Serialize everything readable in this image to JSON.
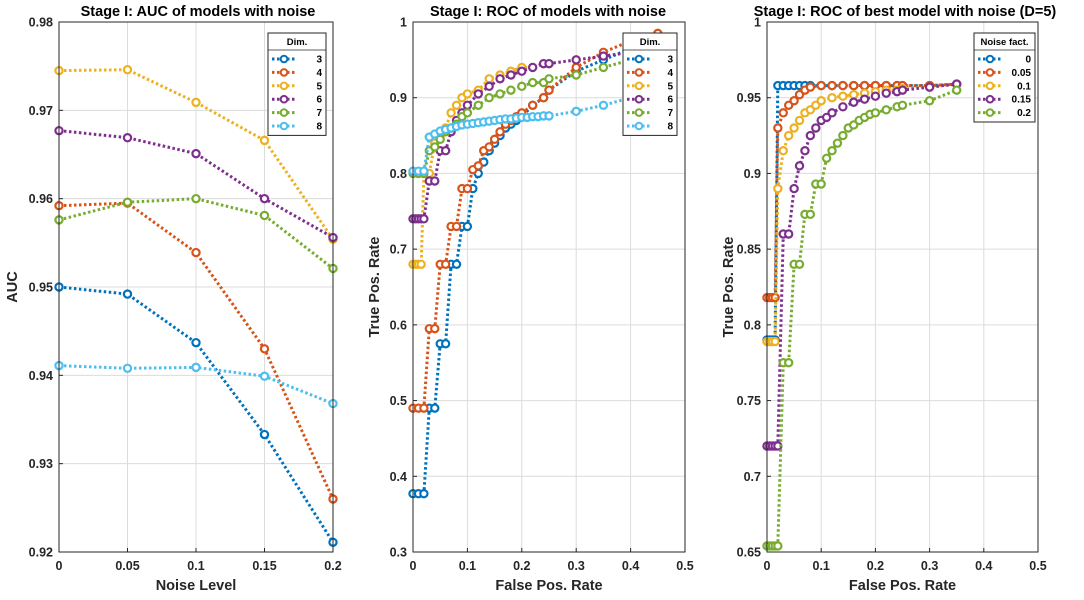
{
  "chart_data": [
    {
      "type": "line",
      "title": "Stage I: AUC of models with noise",
      "xlabel": "Noise Level",
      "ylabel": "AUC",
      "xlim": [
        0,
        0.2
      ],
      "ylim": [
        0.92,
        0.98
      ],
      "xticks": [
        "0",
        "0.05",
        "0.1",
        "0.15",
        "0.2"
      ],
      "yticks": [
        "0.92",
        "0.93",
        "0.94",
        "0.95",
        "0.96",
        "0.97",
        "0.98"
      ],
      "legend_title": "Dim.",
      "legend_position": "top-right",
      "x": [
        0,
        0.05,
        0.1,
        0.15,
        0.2
      ],
      "series": [
        {
          "name": "3",
          "color": "#0072BD",
          "values": [
            0.95,
            0.9492,
            0.9437,
            0.9333,
            0.9211
          ]
        },
        {
          "name": "4",
          "color": "#D95319",
          "values": [
            0.9592,
            0.9595,
            0.9539,
            0.943,
            0.926
          ]
        },
        {
          "name": "5",
          "color": "#EDB120",
          "values": [
            0.9745,
            0.9746,
            0.9709,
            0.9666,
            0.9554
          ]
        },
        {
          "name": "6",
          "color": "#7E2F8E",
          "values": [
            0.9677,
            0.9669,
            0.9651,
            0.96,
            0.9556
          ]
        },
        {
          "name": "7",
          "color": "#77AC30",
          "values": [
            0.9576,
            0.9596,
            0.96,
            0.9581,
            0.9521
          ]
        },
        {
          "name": "8",
          "color": "#4DBEEE",
          "values": [
            0.9411,
            0.9408,
            0.9409,
            0.9399,
            0.9368
          ]
        }
      ]
    },
    {
      "type": "line",
      "title": "Stage I: ROC of models with noise",
      "xlabel": "False Pos. Rate",
      "ylabel": "True Pos. Rate",
      "xlim": [
        0,
        0.5
      ],
      "ylim": [
        0.3,
        1
      ],
      "xticks": [
        "0",
        "0.1",
        "0.2",
        "0.3",
        "0.4",
        "0.5"
      ],
      "yticks": [
        "0.3",
        "0.4",
        "0.5",
        "0.6",
        "0.7",
        "0.8",
        "0.9",
        "1"
      ],
      "legend_title": "Dim.",
      "legend_position": "top-right",
      "series": [
        {
          "name": "3",
          "color": "#0072BD",
          "x": [
            0,
            0.01,
            0.02,
            0.03,
            0.04,
            0.05,
            0.06,
            0.07,
            0.08,
            0.09,
            0.1,
            0.11,
            0.12,
            0.13,
            0.14,
            0.15,
            0.16,
            0.17,
            0.18,
            0.19,
            0.2,
            0.22,
            0.24,
            0.25,
            0.3,
            0.35,
            0.4,
            0.45
          ],
          "y": [
            0.377,
            0.377,
            0.377,
            0.49,
            0.49,
            0.575,
            0.575,
            0.68,
            0.68,
            0.73,
            0.73,
            0.78,
            0.8,
            0.815,
            0.83,
            0.84,
            0.85,
            0.86,
            0.865,
            0.87,
            0.875,
            0.89,
            0.9,
            0.91,
            0.935,
            0.95,
            0.965,
            0.975
          ]
        },
        {
          "name": "4",
          "color": "#D95319",
          "x": [
            0,
            0.01,
            0.02,
            0.03,
            0.04,
            0.05,
            0.06,
            0.07,
            0.08,
            0.09,
            0.1,
            0.11,
            0.12,
            0.13,
            0.14,
            0.15,
            0.16,
            0.17,
            0.18,
            0.19,
            0.2,
            0.22,
            0.24,
            0.25,
            0.3,
            0.35,
            0.4,
            0.45
          ],
          "y": [
            0.49,
            0.49,
            0.49,
            0.595,
            0.595,
            0.68,
            0.68,
            0.73,
            0.73,
            0.78,
            0.78,
            0.805,
            0.81,
            0.83,
            0.835,
            0.845,
            0.855,
            0.865,
            0.87,
            0.875,
            0.88,
            0.89,
            0.9,
            0.91,
            0.94,
            0.96,
            0.975,
            0.985
          ]
        },
        {
          "name": "5",
          "color": "#EDB120",
          "x": [
            0,
            0.005,
            0.01,
            0.015,
            0.02,
            0.03,
            0.04,
            0.05,
            0.06,
            0.07,
            0.08,
            0.09,
            0.1,
            0.12,
            0.14,
            0.16,
            0.18,
            0.2,
            0.22,
            0.24,
            0.25
          ],
          "y": [
            0.68,
            0.68,
            0.68,
            0.68,
            0.8,
            0.8,
            0.84,
            0.85,
            0.86,
            0.88,
            0.89,
            0.9,
            0.905,
            0.91,
            0.925,
            0.93,
            0.935,
            0.94,
            0.94,
            0.945,
            0.945
          ]
        },
        {
          "name": "6",
          "color": "#7E2F8E",
          "x": [
            0,
            0.005,
            0.01,
            0.015,
            0.02,
            0.03,
            0.04,
            0.05,
            0.06,
            0.07,
            0.08,
            0.09,
            0.1,
            0.12,
            0.14,
            0.16,
            0.18,
            0.2,
            0.22,
            0.24,
            0.25,
            0.3,
            0.35,
            0.4,
            0.45
          ],
          "y": [
            0.74,
            0.74,
            0.74,
            0.74,
            0.74,
            0.79,
            0.79,
            0.83,
            0.83,
            0.855,
            0.87,
            0.88,
            0.89,
            0.905,
            0.915,
            0.925,
            0.93,
            0.935,
            0.94,
            0.945,
            0.945,
            0.95,
            0.955,
            0.96,
            0.965
          ]
        },
        {
          "name": "7",
          "color": "#77AC30",
          "x": [
            0,
            0.01,
            0.02,
            0.03,
            0.04,
            0.05,
            0.06,
            0.07,
            0.08,
            0.09,
            0.1,
            0.12,
            0.14,
            0.16,
            0.18,
            0.2,
            0.22,
            0.24,
            0.25,
            0.3,
            0.35,
            0.4
          ],
          "y": [
            0.8,
            0.8,
            0.8,
            0.83,
            0.835,
            0.845,
            0.855,
            0.86,
            0.865,
            0.875,
            0.88,
            0.89,
            0.9,
            0.905,
            0.91,
            0.915,
            0.92,
            0.92,
            0.925,
            0.93,
            0.94,
            0.95
          ]
        },
        {
          "name": "8",
          "color": "#4DBEEE",
          "x": [
            0,
            0.01,
            0.02,
            0.03,
            0.04,
            0.05,
            0.06,
            0.07,
            0.08,
            0.09,
            0.1,
            0.11,
            0.12,
            0.13,
            0.14,
            0.15,
            0.16,
            0.17,
            0.18,
            0.19,
            0.2,
            0.21,
            0.22,
            0.23,
            0.24,
            0.25,
            0.3,
            0.35,
            0.4
          ],
          "y": [
            0.803,
            0.803,
            0.803,
            0.848,
            0.852,
            0.856,
            0.858,
            0.86,
            0.862,
            0.864,
            0.865,
            0.866,
            0.867,
            0.868,
            0.869,
            0.87,
            0.871,
            0.872,
            0.872,
            0.873,
            0.874,
            0.874,
            0.875,
            0.875,
            0.876,
            0.876,
            0.882,
            0.89,
            0.9
          ]
        }
      ]
    },
    {
      "type": "line",
      "title": "Stage I: ROC of best model with noise (D=5)",
      "xlabel": "False Pos. Rate",
      "ylabel": "True Pos. Rate",
      "xlim": [
        0,
        0.5
      ],
      "ylim": [
        0.65,
        1
      ],
      "xticks": [
        "0",
        "0.1",
        "0.2",
        "0.3",
        "0.4",
        "0.5"
      ],
      "yticks": [
        "0.65",
        "0.7",
        "0.75",
        "0.8",
        "0.85",
        "0.9",
        "0.95",
        "1"
      ],
      "legend_title": "Noise fact.",
      "legend_position": "top-right",
      "series": [
        {
          "name": "0",
          "color": "#0072BD",
          "x": [
            0,
            0.005,
            0.01,
            0.015,
            0.02,
            0.03,
            0.04,
            0.05,
            0.06,
            0.07,
            0.08,
            0.1,
            0.12,
            0.14,
            0.16,
            0.18,
            0.2,
            0.22,
            0.24,
            0.25,
            0.3,
            0.35
          ],
          "y": [
            0.79,
            0.79,
            0.79,
            0.79,
            0.958,
            0.958,
            0.958,
            0.958,
            0.958,
            0.958,
            0.958,
            0.958,
            0.958,
            0.958,
            0.958,
            0.958,
            0.958,
            0.958,
            0.958,
            0.958,
            0.958,
            0.959
          ]
        },
        {
          "name": "0.05",
          "color": "#D95319",
          "x": [
            0,
            0.005,
            0.01,
            0.015,
            0.02,
            0.03,
            0.04,
            0.05,
            0.06,
            0.07,
            0.08,
            0.1,
            0.12,
            0.14,
            0.16,
            0.18,
            0.2,
            0.22,
            0.24,
            0.25,
            0.3,
            0.35
          ],
          "y": [
            0.818,
            0.818,
            0.818,
            0.818,
            0.93,
            0.94,
            0.945,
            0.948,
            0.952,
            0.955,
            0.957,
            0.958,
            0.958,
            0.958,
            0.958,
            0.958,
            0.958,
            0.958,
            0.958,
            0.958,
            0.958,
            0.959
          ]
        },
        {
          "name": "0.1",
          "color": "#EDB120",
          "x": [
            0,
            0.005,
            0.01,
            0.015,
            0.02,
            0.03,
            0.04,
            0.05,
            0.06,
            0.07,
            0.08,
            0.09,
            0.1,
            0.12,
            0.14,
            0.16,
            0.18,
            0.2,
            0.22,
            0.24,
            0.25,
            0.3,
            0.35
          ],
          "y": [
            0.789,
            0.789,
            0.789,
            0.789,
            0.89,
            0.915,
            0.925,
            0.93,
            0.935,
            0.94,
            0.942,
            0.945,
            0.948,
            0.95,
            0.951,
            0.952,
            0.953,
            0.954,
            0.955,
            0.955,
            0.956,
            0.957,
            0.959
          ]
        },
        {
          "name": "0.15",
          "color": "#7E2F8E",
          "x": [
            0,
            0.005,
            0.01,
            0.015,
            0.02,
            0.03,
            0.04,
            0.05,
            0.06,
            0.07,
            0.08,
            0.09,
            0.1,
            0.11,
            0.12,
            0.14,
            0.16,
            0.18,
            0.2,
            0.22,
            0.24,
            0.25,
            0.3,
            0.35
          ],
          "y": [
            0.72,
            0.72,
            0.72,
            0.72,
            0.72,
            0.86,
            0.86,
            0.89,
            0.905,
            0.915,
            0.925,
            0.93,
            0.935,
            0.937,
            0.94,
            0.944,
            0.947,
            0.949,
            0.951,
            0.953,
            0.954,
            0.955,
            0.957,
            0.959
          ]
        },
        {
          "name": "0.2",
          "color": "#77AC30",
          "x": [
            0,
            0.005,
            0.01,
            0.015,
            0.02,
            0.03,
            0.04,
            0.05,
            0.06,
            0.07,
            0.08,
            0.09,
            0.1,
            0.11,
            0.12,
            0.13,
            0.14,
            0.15,
            0.16,
            0.17,
            0.18,
            0.19,
            0.2,
            0.22,
            0.24,
            0.25,
            0.3,
            0.35
          ],
          "y": [
            0.654,
            0.654,
            0.654,
            0.654,
            0.654,
            0.775,
            0.775,
            0.84,
            0.84,
            0.873,
            0.873,
            0.893,
            0.893,
            0.91,
            0.915,
            0.92,
            0.925,
            0.93,
            0.932,
            0.935,
            0.937,
            0.939,
            0.94,
            0.942,
            0.944,
            0.945,
            0.948,
            0.955
          ]
        }
      ]
    }
  ]
}
